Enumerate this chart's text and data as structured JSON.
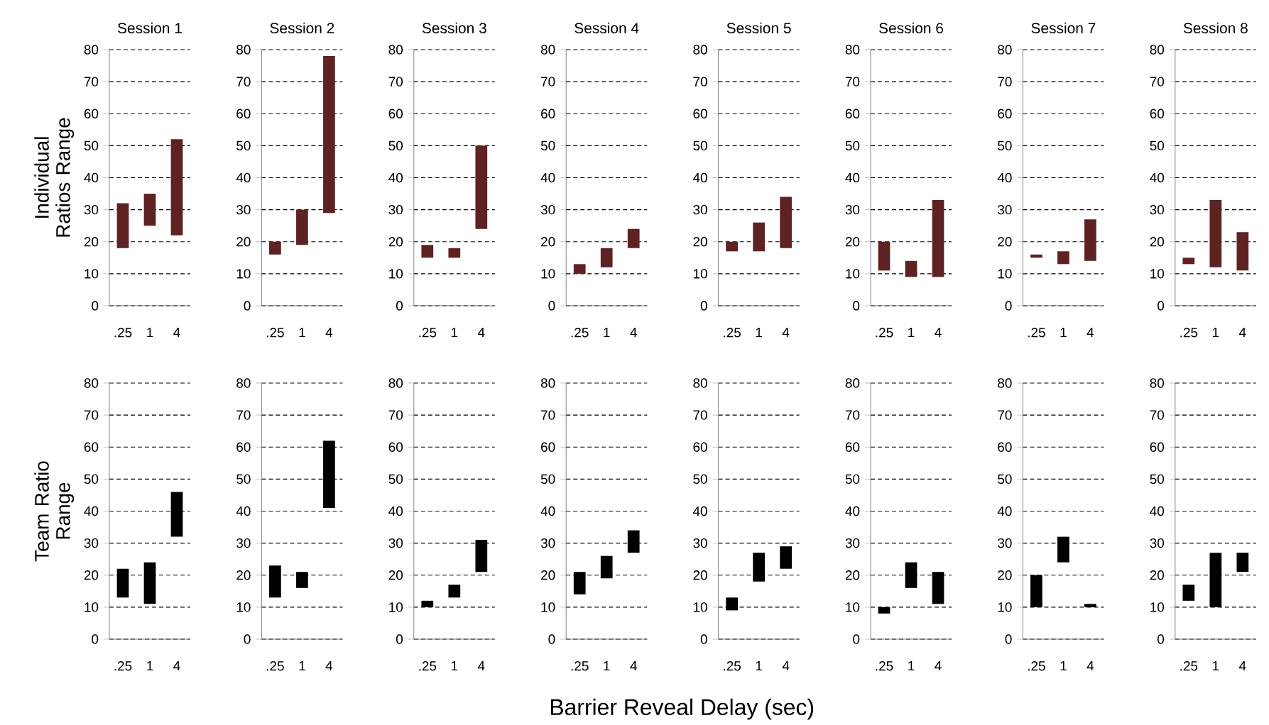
{
  "chart_data": [
    {
      "type": "bar",
      "title": "Session 1",
      "ylabel": "Individual Ratios Range",
      "categories": [
        ".25",
        "1",
        "4"
      ],
      "base": [
        18,
        25,
        22
      ],
      "values": [
        14,
        10,
        30
      ],
      "color": "#5f2222",
      "ylim": [
        0,
        80
      ],
      "yticks": [
        0,
        10,
        20,
        30,
        40,
        50,
        60,
        70,
        80
      ],
      "grid": "y"
    },
    {
      "type": "bar",
      "title": "Session 2",
      "categories": [
        ".25",
        "1",
        "4"
      ],
      "base": [
        16,
        19,
        29
      ],
      "values": [
        4,
        11,
        49
      ],
      "color": "#5f2222",
      "ylim": [
        0,
        80
      ],
      "yticks": [
        0,
        10,
        20,
        30,
        40,
        50,
        60,
        70,
        80
      ],
      "grid": "y"
    },
    {
      "type": "bar",
      "title": "Session 3",
      "categories": [
        ".25",
        "1",
        "4"
      ],
      "base": [
        15,
        15,
        24
      ],
      "values": [
        4,
        3,
        26
      ],
      "color": "#5f2222",
      "ylim": [
        0,
        80
      ],
      "yticks": [
        0,
        10,
        20,
        30,
        40,
        50,
        60,
        70,
        80
      ],
      "grid": "y"
    },
    {
      "type": "bar",
      "title": "Session 4",
      "categories": [
        ".25",
        "1",
        "4"
      ],
      "base": [
        10,
        12,
        18
      ],
      "values": [
        3,
        6,
        6
      ],
      "color": "#5f2222",
      "ylim": [
        0,
        80
      ],
      "yticks": [
        0,
        10,
        20,
        30,
        40,
        50,
        60,
        70,
        80
      ],
      "grid": "y"
    },
    {
      "type": "bar",
      "title": "Session 5",
      "categories": [
        ".25",
        "1",
        "4"
      ],
      "base": [
        17,
        17,
        18
      ],
      "values": [
        3,
        9,
        16
      ],
      "color": "#5f2222",
      "ylim": [
        0,
        80
      ],
      "yticks": [
        0,
        10,
        20,
        30,
        40,
        50,
        60,
        70,
        80
      ],
      "grid": "y"
    },
    {
      "type": "bar",
      "title": "Session 6",
      "categories": [
        ".25",
        "1",
        "4"
      ],
      "base": [
        11,
        9,
        9
      ],
      "values": [
        9,
        5,
        24
      ],
      "color": "#5f2222",
      "ylim": [
        0,
        80
      ],
      "yticks": [
        0,
        10,
        20,
        30,
        40,
        50,
        60,
        70,
        80
      ],
      "grid": "y"
    },
    {
      "type": "bar",
      "title": "Session 7",
      "categories": [
        ".25",
        "1",
        "4"
      ],
      "base": [
        15,
        13,
        14
      ],
      "values": [
        1,
        4,
        13
      ],
      "color": "#5f2222",
      "ylim": [
        0,
        80
      ],
      "yticks": [
        0,
        10,
        20,
        30,
        40,
        50,
        60,
        70,
        80
      ],
      "grid": "y"
    },
    {
      "type": "bar",
      "title": "Session 8",
      "categories": [
        ".25",
        "1",
        "4"
      ],
      "base": [
        13,
        12,
        11
      ],
      "values": [
        2,
        21,
        12
      ],
      "color": "#5f2222",
      "ylim": [
        0,
        80
      ],
      "yticks": [
        0,
        10,
        20,
        30,
        40,
        50,
        60,
        70,
        80
      ],
      "grid": "y"
    },
    {
      "type": "bar",
      "ylabel": "Team Ratio Range",
      "categories": [
        ".25",
        "1",
        "4"
      ],
      "base": [
        13,
        11,
        32
      ],
      "values": [
        9,
        13,
        14
      ],
      "color": "#000000",
      "ylim": [
        0,
        80
      ],
      "yticks": [
        0,
        10,
        20,
        30,
        40,
        50,
        60,
        70,
        80
      ],
      "grid": "y"
    },
    {
      "type": "bar",
      "categories": [
        ".25",
        "1",
        "4"
      ],
      "base": [
        13,
        16,
        41
      ],
      "values": [
        10,
        5,
        21
      ],
      "color": "#000000",
      "ylim": [
        0,
        80
      ],
      "yticks": [
        0,
        10,
        20,
        30,
        40,
        50,
        60,
        70,
        80
      ],
      "grid": "y"
    },
    {
      "type": "bar",
      "categories": [
        ".25",
        "1",
        "4"
      ],
      "base": [
        10,
        13,
        21
      ],
      "values": [
        2,
        4,
        10
      ],
      "color": "#000000",
      "ylim": [
        0,
        80
      ],
      "yticks": [
        0,
        10,
        20,
        30,
        40,
        50,
        60,
        70,
        80
      ],
      "grid": "y"
    },
    {
      "type": "bar",
      "xlabel": "Barrier Reveal Delay (sec)",
      "categories": [
        ".25",
        "1",
        "4"
      ],
      "base": [
        14,
        19,
        27
      ],
      "values": [
        7,
        7,
        7
      ],
      "color": "#000000",
      "ylim": [
        0,
        80
      ],
      "yticks": [
        0,
        10,
        20,
        30,
        40,
        50,
        60,
        70,
        80
      ],
      "grid": "y"
    },
    {
      "type": "bar",
      "categories": [
        ".25",
        "1",
        "4"
      ],
      "base": [
        9,
        18,
        22
      ],
      "values": [
        4,
        9,
        7
      ],
      "color": "#000000",
      "ylim": [
        0,
        80
      ],
      "yticks": [
        0,
        10,
        20,
        30,
        40,
        50,
        60,
        70,
        80
      ],
      "grid": "y"
    },
    {
      "type": "bar",
      "categories": [
        ".25",
        "1",
        "4"
      ],
      "base": [
        8,
        16,
        11
      ],
      "values": [
        2,
        8,
        10
      ],
      "color": "#000000",
      "ylim": [
        0,
        80
      ],
      "yticks": [
        0,
        10,
        20,
        30,
        40,
        50,
        60,
        70,
        80
      ],
      "grid": "y"
    },
    {
      "type": "bar",
      "categories": [
        ".25",
        "1",
        "4"
      ],
      "base": [
        10,
        24,
        10
      ],
      "values": [
        10,
        8,
        1
      ],
      "color": "#000000",
      "ylim": [
        0,
        80
      ],
      "yticks": [
        0,
        10,
        20,
        30,
        40,
        50,
        60,
        70,
        80
      ],
      "grid": "y"
    },
    {
      "type": "bar",
      "categories": [
        ".25",
        "1",
        "4"
      ],
      "base": [
        12,
        10,
        21
      ],
      "values": [
        5,
        17,
        6
      ],
      "color": "#000000",
      "ylim": [
        0,
        80
      ],
      "yticks": [
        0,
        10,
        20,
        30,
        40,
        50,
        60,
        70,
        80
      ],
      "grid": "y"
    }
  ]
}
